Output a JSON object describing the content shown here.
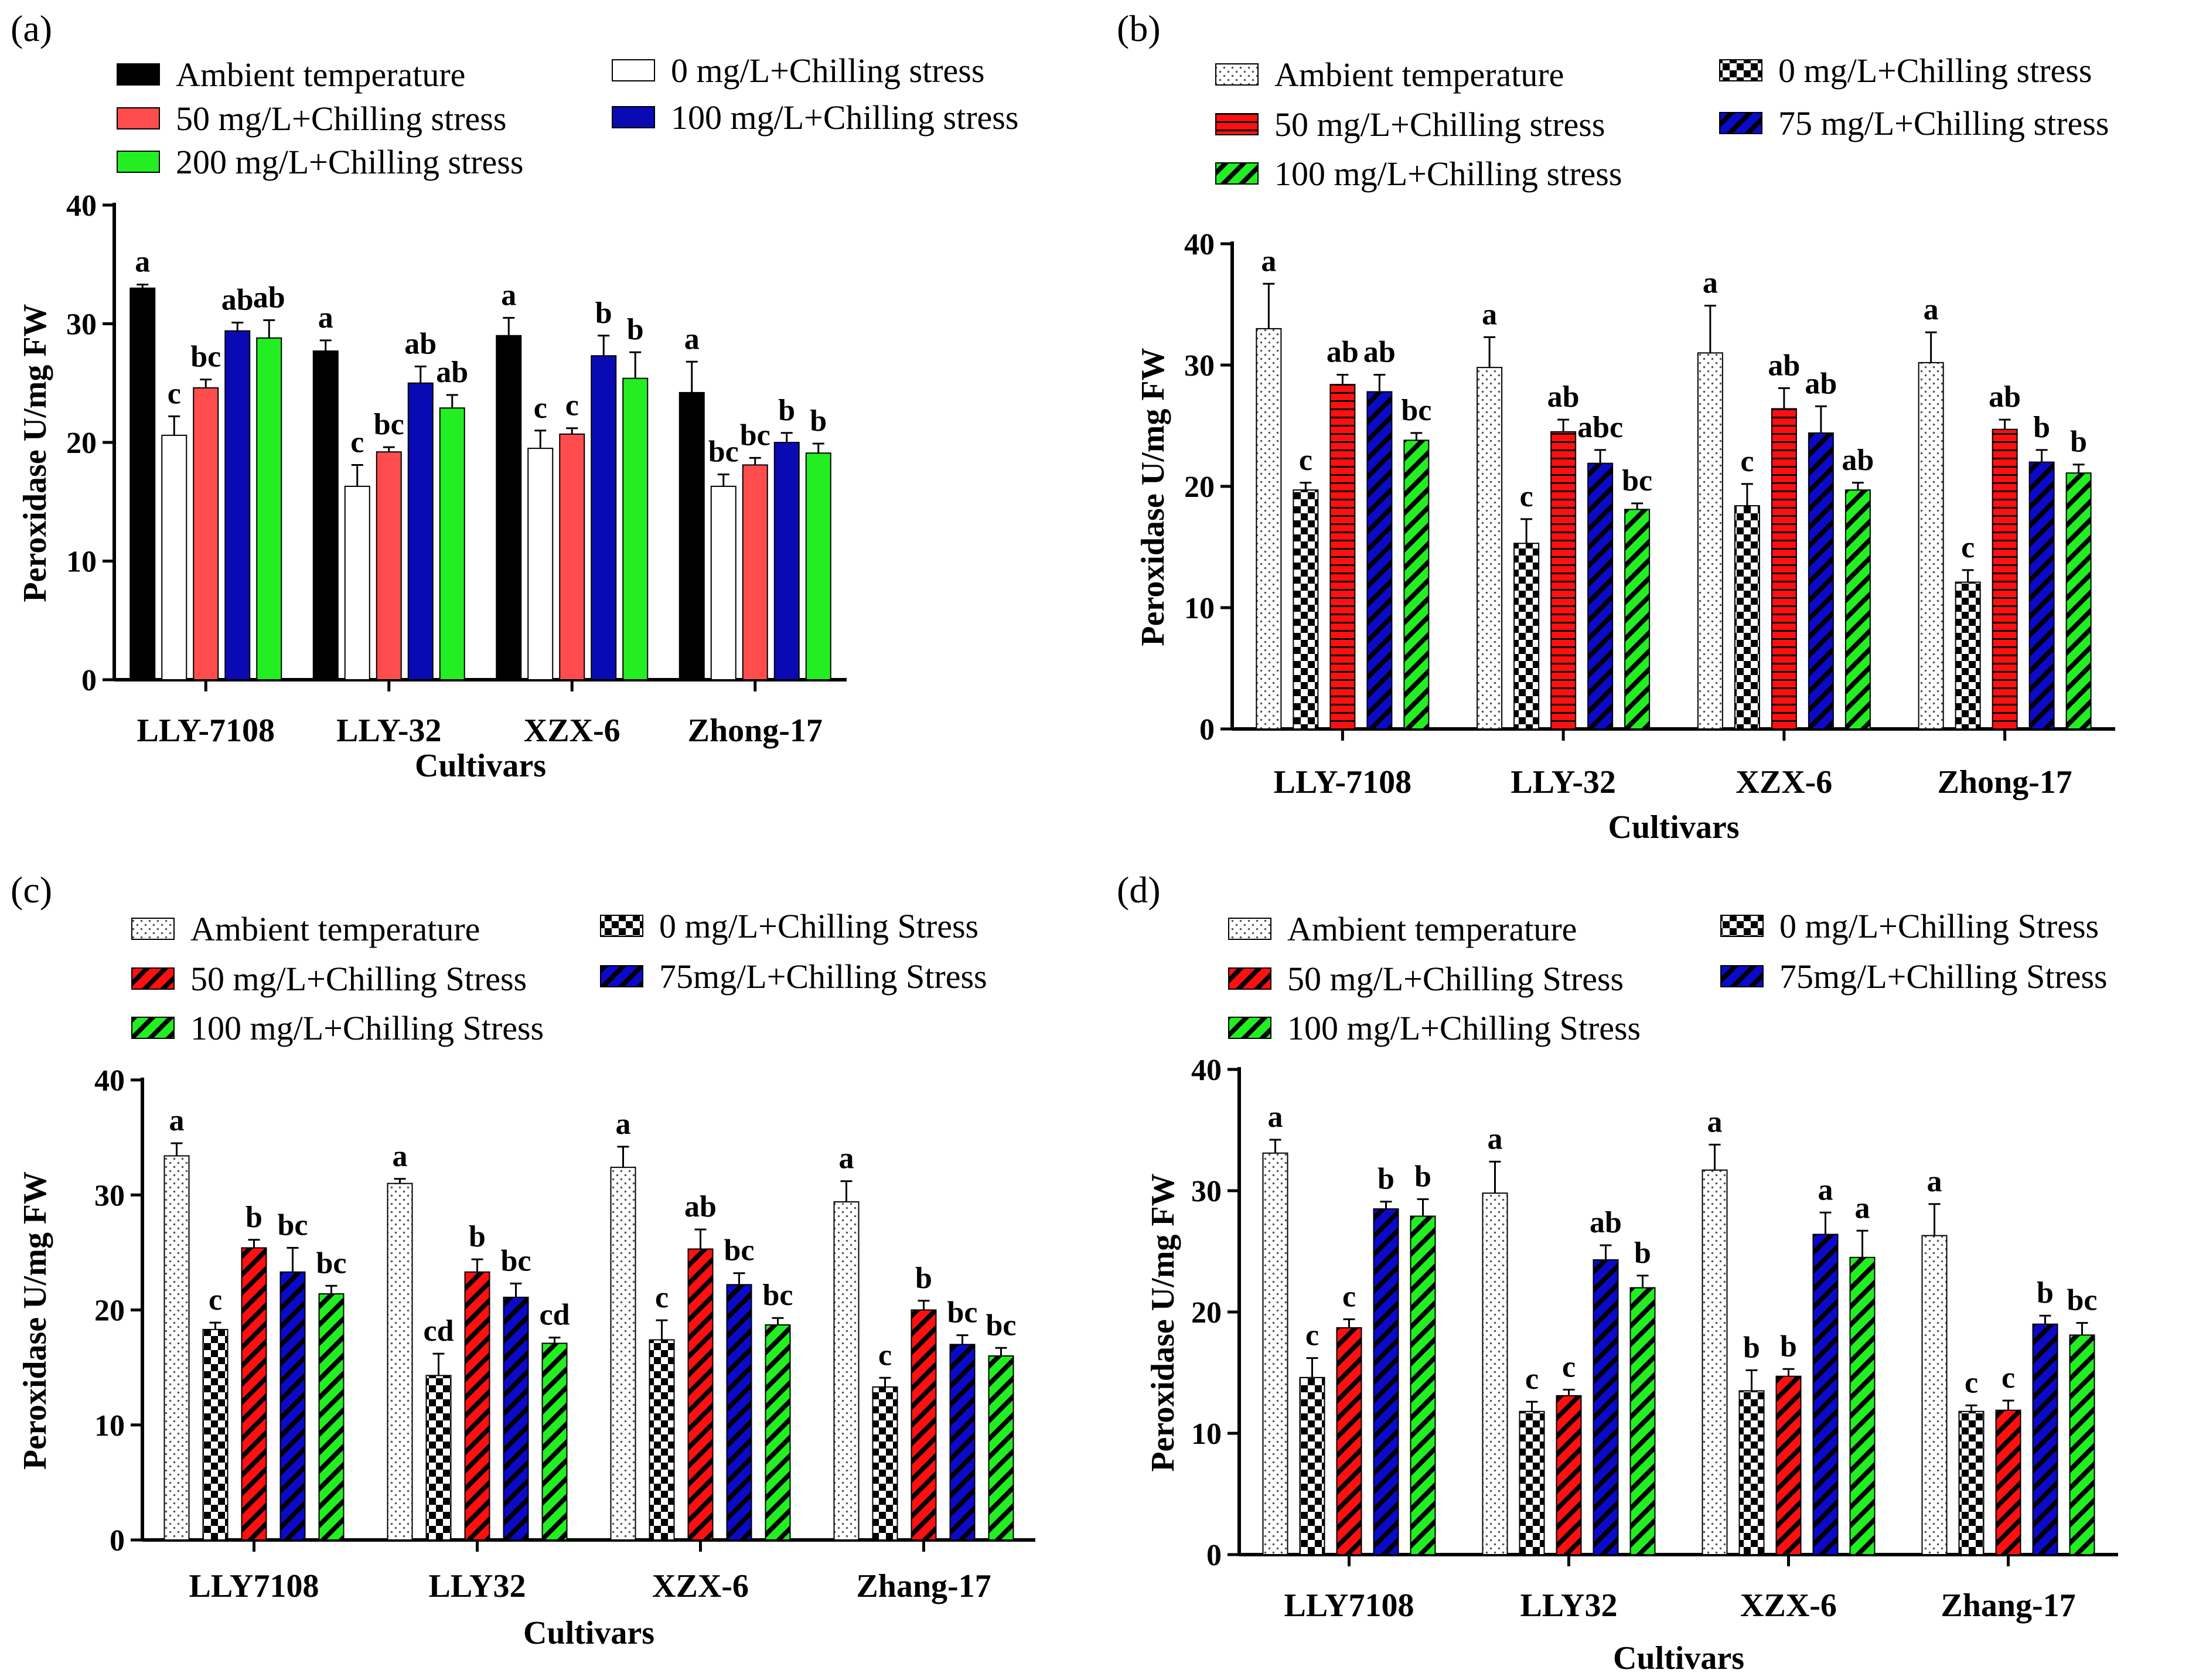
{
  "chart_data": [
    {
      "panel": "(a)",
      "type": "bar",
      "patterned": false,
      "ylabel": "Peroxidase U/mg FW",
      "xlabel": "Cultivars",
      "ylim": [
        0,
        40
      ],
      "yticks": [
        "0",
        "10",
        "20",
        "30",
        "40"
      ],
      "categories": [
        "LLY-7108",
        "LLY-32",
        "XZX-6",
        "Zhong-17"
      ],
      "series": [
        {
          "name": "Ambient temperature",
          "fill": "#000000",
          "pattern": "solid",
          "values": [
            33.0,
            27.7,
            29.0,
            24.2
          ],
          "errors": [
            0.3,
            0.9,
            1.5,
            2.6
          ],
          "letters": [
            "a",
            "a",
            "a",
            "a"
          ]
        },
        {
          "name": "0 mg/L+Chilling stress",
          "fill": "#ffffff",
          "pattern": "solid",
          "values": [
            20.6,
            16.3,
            19.5,
            16.3
          ],
          "errors": [
            1.6,
            1.8,
            1.5,
            1.0
          ],
          "letters": [
            "c",
            "c",
            "c",
            "bc"
          ]
        },
        {
          "name": "50 mg/L+Chilling stress",
          "fill": "#ff4d4d",
          "pattern": "solid",
          "values": [
            24.6,
            19.2,
            20.7,
            18.1
          ],
          "errors": [
            0.7,
            0.4,
            0.5,
            0.6
          ],
          "letters": [
            "bc",
            "bc",
            "c",
            "bc"
          ]
        },
        {
          "name": "100 mg/L+Chilling stress",
          "fill": "#0a0ab4",
          "pattern": "solid",
          "values": [
            29.4,
            25.0,
            27.3,
            20.0
          ],
          "errors": [
            0.7,
            1.4,
            1.7,
            0.8
          ],
          "letters": [
            "ab",
            "ab",
            "b",
            "b"
          ]
        },
        {
          "name": "200 mg/L+Chilling stress",
          "fill": "#22ee22",
          "pattern": "solid",
          "values": [
            28.8,
            22.9,
            25.4,
            19.1
          ],
          "errors": [
            1.5,
            1.1,
            2.2,
            0.8
          ],
          "letters": [
            "ab",
            "ab",
            "b",
            "b"
          ]
        }
      ]
    },
    {
      "panel": "(b)",
      "type": "bar",
      "patterned": true,
      "ylabel": "Peroxidase U/mg FW",
      "xlabel": "Cultivars",
      "ylim": [
        0,
        40
      ],
      "yticks": [
        "0",
        "10",
        "20",
        "30",
        "40"
      ],
      "categories": [
        "LLY-7108",
        "LLY-32",
        "XZX-6",
        "Zhong-17"
      ],
      "series": [
        {
          "name": "Ambient temperature",
          "fill": "#ffffff",
          "pattern": "dots",
          "values": [
            33.0,
            29.8,
            31.0,
            30.2
          ],
          "errors": [
            3.7,
            2.5,
            3.9,
            2.5
          ],
          "letters": [
            "a",
            "a",
            "a",
            "a"
          ]
        },
        {
          "name": "0 mg/L+Chilling stress",
          "fill": "#000000",
          "pattern": "checker",
          "values": [
            19.7,
            15.3,
            18.4,
            12.1
          ],
          "errors": [
            0.6,
            2.0,
            1.8,
            1.0
          ],
          "letters": [
            "c",
            "c",
            "c",
            "c"
          ]
        },
        {
          "name": "50 mg/L+Chilling stress",
          "fill": "#ff1010",
          "pattern": "hlines",
          "values": [
            28.4,
            24.5,
            26.4,
            24.7
          ],
          "errors": [
            0.8,
            1.0,
            1.7,
            0.8
          ],
          "letters": [
            "ab",
            "ab",
            "ab",
            "ab"
          ]
        },
        {
          "name": "75 mg/L+Chilling stress",
          "fill": "#0a0ac8",
          "pattern": "diag",
          "values": [
            27.8,
            21.9,
            24.4,
            22.0
          ],
          "errors": [
            1.4,
            1.1,
            2.2,
            1.0
          ],
          "letters": [
            "ab",
            "abc",
            "ab",
            "b"
          ]
        },
        {
          "name": "100 mg/L+Chilling stress",
          "fill": "#22ee22",
          "pattern": "diag",
          "values": [
            23.8,
            18.1,
            19.7,
            21.1
          ],
          "errors": [
            0.6,
            0.5,
            0.6,
            0.7
          ],
          "letters": [
            "bc",
            "bc",
            "ab",
            "b"
          ]
        }
      ]
    },
    {
      "panel": "(c)",
      "type": "bar",
      "patterned": true,
      "ylabel": "Peroxidase U/mg FW",
      "xlabel": "Cultivars",
      "ylim": [
        0,
        40
      ],
      "yticks": [
        "0",
        "10",
        "20",
        "30",
        "40"
      ],
      "categories": [
        "LLY7108",
        "LLY32",
        "XZX-6",
        "Zhang-17"
      ],
      "series": [
        {
          "name": "Ambient temperature",
          "fill": "#ffffff",
          "pattern": "dots",
          "values": [
            33.4,
            31.0,
            32.4,
            29.4
          ],
          "errors": [
            1.1,
            0.4,
            1.8,
            1.8
          ],
          "letters": [
            "a",
            "a",
            "a",
            "a"
          ]
        },
        {
          "name": "0 mg/L+Chilling Stress",
          "fill": "#000000",
          "pattern": "checker",
          "values": [
            18.3,
            14.3,
            17.4,
            13.3
          ],
          "errors": [
            0.6,
            1.9,
            1.7,
            0.8
          ],
          "letters": [
            "c",
            "cd",
            "c",
            "c"
          ]
        },
        {
          "name": "50 mg/L+Chilling Stress",
          "fill": "#ff1010",
          "pattern": "diag",
          "values": [
            25.4,
            23.3,
            25.3,
            20.0
          ],
          "errors": [
            0.7,
            1.1,
            1.7,
            0.8
          ],
          "letters": [
            "b",
            "b",
            "ab",
            "b"
          ]
        },
        {
          "name": "75mg/L+Chilling Stress",
          "fill": "#0a0ac8",
          "pattern": "diag",
          "values": [
            23.3,
            21.1,
            22.2,
            17.0
          ],
          "errors": [
            2.1,
            1.2,
            1.0,
            0.8
          ],
          "letters": [
            "bc",
            "bc",
            "bc",
            "bc"
          ]
        },
        {
          "name": "100 mg/L+Chilling Stress",
          "fill": "#22ee22",
          "pattern": "diag",
          "values": [
            21.4,
            17.1,
            18.7,
            16.0
          ],
          "errors": [
            0.7,
            0.5,
            0.6,
            0.7
          ],
          "letters": [
            "bc",
            "cd",
            "bc",
            "bc"
          ]
        }
      ]
    },
    {
      "panel": "(d)",
      "type": "bar",
      "patterned": true,
      "ylabel": "Peroxidase U/mg FW",
      "xlabel": "Cultivars",
      "ylim": [
        0,
        40
      ],
      "yticks": [
        "0",
        "10",
        "20",
        "30",
        "40"
      ],
      "categories": [
        "LLY7108",
        "LLY32",
        "XZX-6",
        "Zhang-17"
      ],
      "series": [
        {
          "name": "Ambient temperature",
          "fill": "#ffffff",
          "pattern": "dots",
          "values": [
            33.1,
            29.8,
            31.7,
            26.3
          ],
          "errors": [
            1.1,
            2.6,
            2.1,
            2.6
          ],
          "letters": [
            "a",
            "a",
            "a",
            "a"
          ]
        },
        {
          "name": "0 mg/L+Chilling Stress",
          "fill": "#000000",
          "pattern": "checker",
          "values": [
            14.6,
            11.8,
            13.5,
            11.8
          ],
          "errors": [
            1.6,
            0.8,
            1.7,
            0.5
          ],
          "letters": [
            "c",
            "c",
            "b",
            "c"
          ]
        },
        {
          "name": "50 mg/L+Chilling Stress",
          "fill": "#ff1010",
          "pattern": "diag",
          "values": [
            18.7,
            13.1,
            14.7,
            11.9
          ],
          "errors": [
            0.7,
            0.5,
            0.6,
            0.8
          ],
          "letters": [
            "c",
            "c",
            "b",
            "c"
          ]
        },
        {
          "name": "75mg/L+Chilling Stress",
          "fill": "#0a0ac8",
          "pattern": "diag",
          "values": [
            28.5,
            24.3,
            26.4,
            19.0
          ],
          "errors": [
            0.6,
            1.2,
            1.8,
            0.7
          ],
          "letters": [
            "b",
            "ab",
            "a",
            "b"
          ]
        },
        {
          "name": "100 mg/L+Chilling Stress",
          "fill": "#22ee22",
          "pattern": "diag",
          "values": [
            27.9,
            22.0,
            24.5,
            18.1
          ],
          "errors": [
            1.4,
            1.0,
            2.2,
            1.0
          ],
          "letters": [
            "b",
            "b",
            "a",
            "bc"
          ]
        }
      ]
    }
  ]
}
